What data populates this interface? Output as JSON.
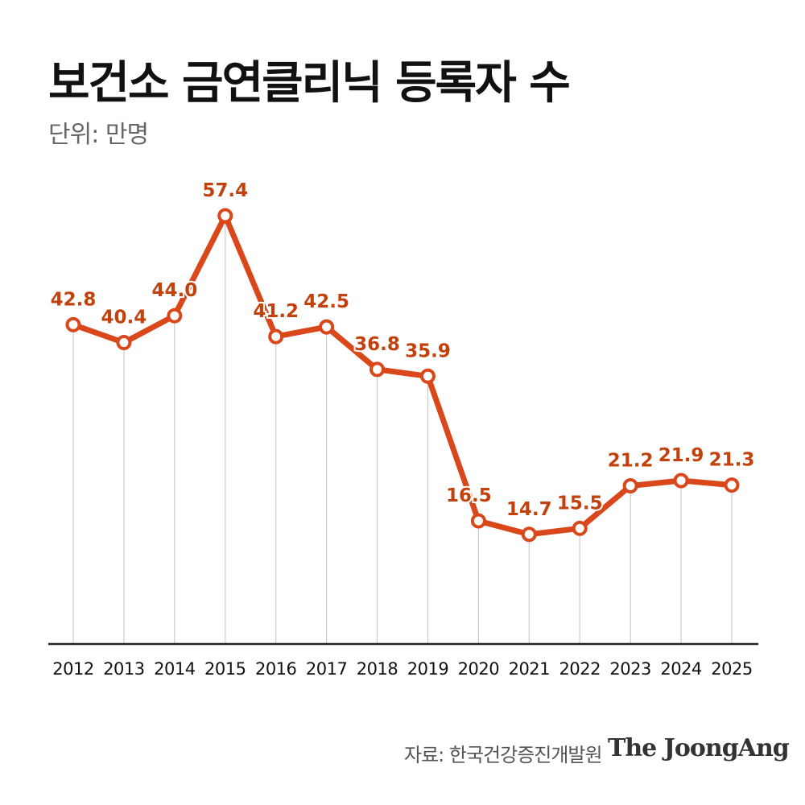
{
  "header": {
    "title": "보건소 금연클리닉 등록자 수",
    "unit": "단위: 만명"
  },
  "footer": {
    "source": "자료: 한국건강증진개발원",
    "brand": "The JoongAng"
  },
  "colors": {
    "line": "#d9471a",
    "label": "#c2410c",
    "gridline": "#cccccc",
    "axis": "#222222"
  },
  "chart_data": {
    "type": "line",
    "categories": [
      "2012",
      "2013",
      "2014",
      "2015",
      "2016",
      "2017",
      "2018",
      "2019",
      "2020",
      "2021",
      "2022",
      "2023",
      "2024",
      "2025"
    ],
    "series": [
      {
        "values": [
          42.8,
          40.4,
          44.0,
          57.4,
          41.2,
          42.5,
          36.8,
          35.9,
          16.5,
          14.7,
          15.5,
          21.2,
          21.9,
          21.3
        ]
      }
    ],
    "data_labels": [
      "42.8",
      "40.4",
      "44.0",
      "57.4",
      "41.2",
      "42.5",
      "36.8",
      "35.9",
      "16.5",
      "14.7",
      "15.5",
      "21.2",
      "21.9",
      "21.3"
    ],
    "ylim": [
      0,
      60
    ],
    "grid": "vertical drop lines",
    "legend": "none"
  }
}
